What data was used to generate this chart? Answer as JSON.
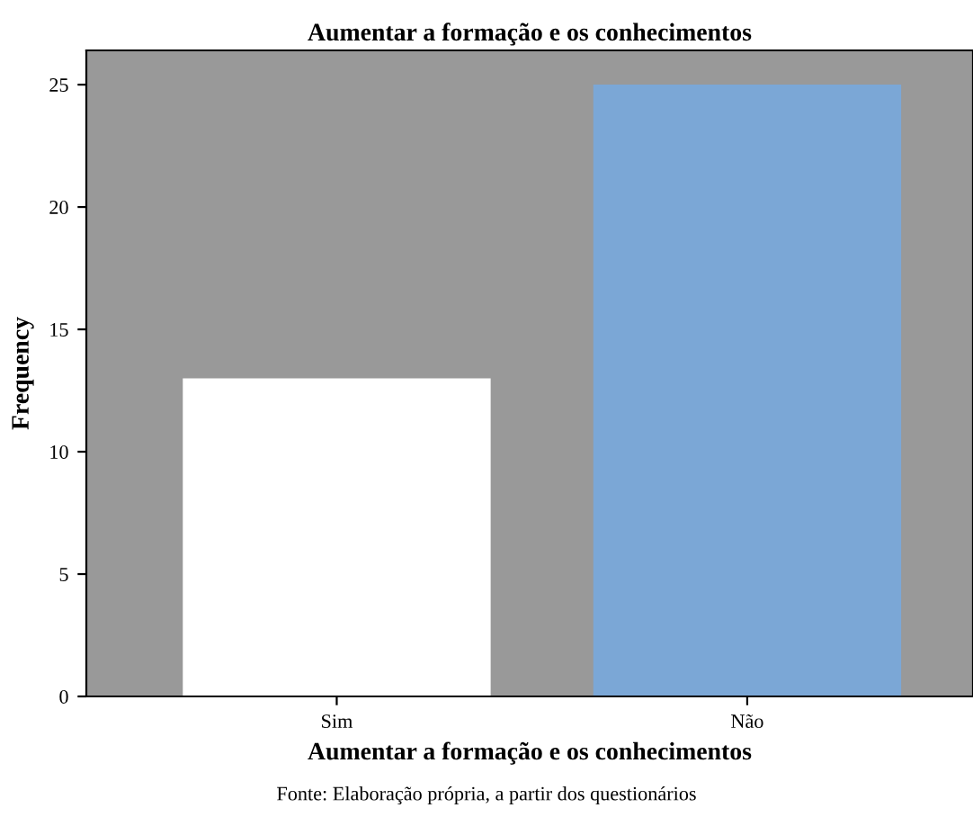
{
  "chart_data": {
    "type": "bar",
    "title": "Aumentar a formação e os conhecimentos",
    "xlabel": "Aumentar a formação e os conhecimentos",
    "ylabel": "Frequency",
    "categories": [
      "Sim",
      "Não"
    ],
    "values": [
      13,
      25
    ],
    "colors": [
      "#ffffff",
      "#7ba7d6"
    ],
    "ylim": [
      0,
      26.4
    ],
    "yticks": [
      0,
      5,
      10,
      15,
      20,
      25
    ],
    "grid": false,
    "legend": false,
    "annotations": [
      "Fonte: Elaboração própria, a partir dos questionários"
    ]
  }
}
